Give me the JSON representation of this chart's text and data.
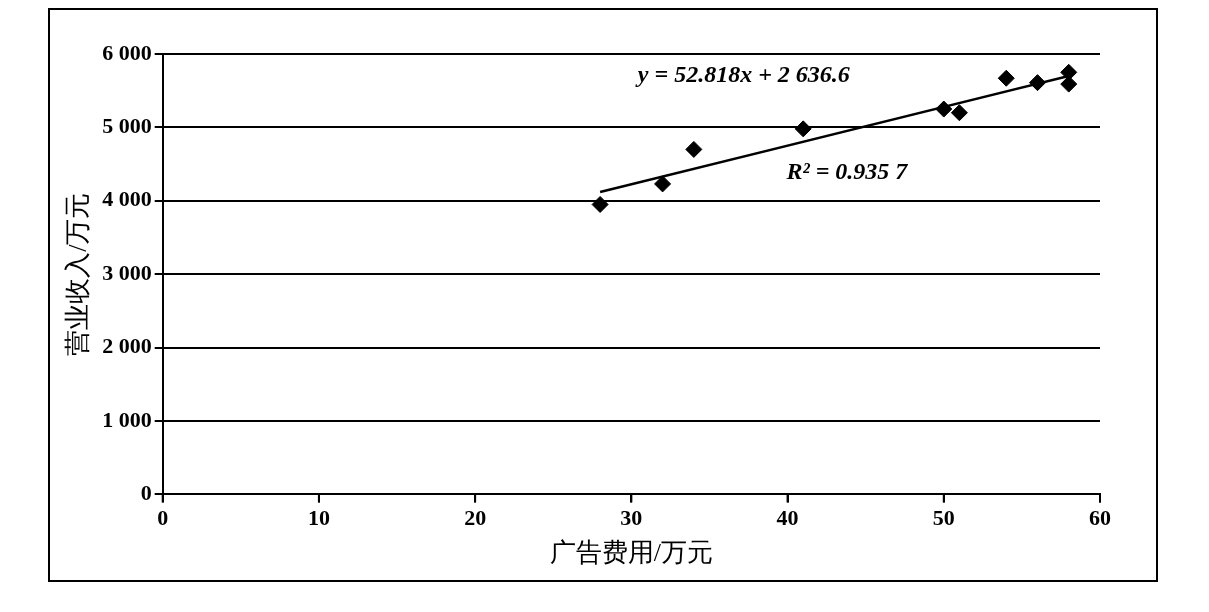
{
  "chart_data": {
    "type": "scatter",
    "xlabel": "广告费用/万元",
    "ylabel": "营业收入/万元",
    "xlim": [
      0,
      60
    ],
    "xticks": [
      0,
      10,
      20,
      30,
      40,
      50,
      60
    ],
    "ylim": [
      0,
      6000
    ],
    "yticks": [
      {
        "value": 0,
        "label": "0"
      },
      {
        "value": 1000,
        "label": "1 000"
      },
      {
        "value": 2000,
        "label": "2 000"
      },
      {
        "value": 3000,
        "label": "3 000"
      },
      {
        "value": 4000,
        "label": "4 000"
      },
      {
        "value": 5000,
        "label": "5 000"
      },
      {
        "value": 6000,
        "label": "6 000"
      }
    ],
    "grid": "y",
    "legend": false,
    "series": [
      {
        "type": "scatter",
        "color": "#000000",
        "marker": "diamond",
        "x": [
          28,
          32,
          34,
          41,
          50,
          51,
          54,
          56,
          58,
          58
        ],
        "values": [
          3950,
          4230,
          4700,
          4980,
          5250,
          5200,
          5670,
          5610,
          5750,
          5590
        ]
      },
      {
        "type": "line",
        "color": "#000000",
        "marker": "none",
        "line_style": "solid",
        "x": [
          28,
          58
        ],
        "values": [
          4120,
          5700
        ]
      }
    ],
    "annotations": [
      "y = 52.818x + 2 636.6",
      "R² = 0.935 7"
    ]
  }
}
